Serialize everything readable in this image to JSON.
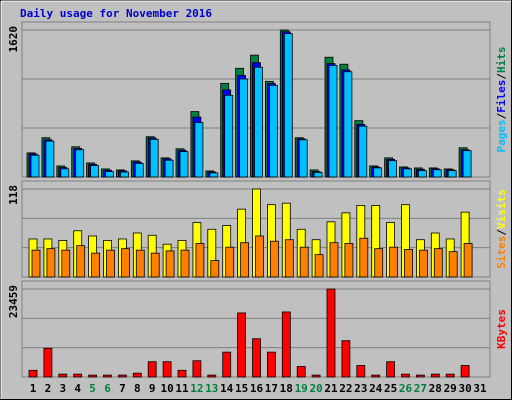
{
  "chart_data": [
    {
      "type": "bar",
      "title": "Daily usage for November 2016",
      "label_separator": "/",
      "ylim": [
        0,
        1620
      ],
      "yticks": [
        1620
      ],
      "series": [
        {
          "name": "Hits",
          "color": "#008040",
          "values": [
            266,
            433,
            122,
            333,
            155,
            89,
            78,
            178,
            444,
            211,
            311,
            721,
            67,
            1032,
            1198,
            1343,
            1054,
            1620,
            433,
            78,
            1320,
            1243,
            621,
            122,
            211,
            111,
            100,
            100,
            89,
            322,
            null
          ]
        },
        {
          "name": "Files",
          "color": "#0000FF",
          "values": [
            255,
            410,
            105,
            315,
            140,
            75,
            68,
            165,
            430,
            200,
            295,
            660,
            55,
            960,
            1120,
            1260,
            1030,
            1600,
            420,
            60,
            1250,
            1180,
            580,
            110,
            195,
            100,
            85,
            90,
            80,
            300,
            null
          ]
        },
        {
          "name": "Pages",
          "color": "#00C0FF",
          "values": [
            240,
            395,
            90,
            300,
            125,
            60,
            55,
            150,
            415,
            185,
            280,
            600,
            45,
            900,
            1080,
            1210,
            1010,
            1580,
            410,
            50,
            1230,
            1160,
            560,
            100,
            180,
            90,
            70,
            80,
            70,
            290,
            null
          ]
        }
      ]
    },
    {
      "type": "bar",
      "label_separator": "/",
      "ylim": [
        0,
        118
      ],
      "yticks": [
        118
      ],
      "series": [
        {
          "name": "Visits",
          "color": "#FFFF00",
          "values": [
            51,
            51,
            49,
            62,
            55,
            49,
            51,
            59,
            56,
            44,
            49,
            73,
            64,
            69,
            91,
            118,
            97,
            99,
            64,
            50,
            74,
            86,
            96,
            96,
            73,
            97,
            50,
            59,
            51,
            87,
            null
          ]
        },
        {
          "name": "Sites",
          "color": "#FF8000",
          "values": [
            36,
            38,
            36,
            42,
            32,
            36,
            38,
            36,
            32,
            35,
            36,
            45,
            22,
            40,
            46,
            55,
            48,
            50,
            40,
            30,
            46,
            45,
            52,
            38,
            40,
            37,
            36,
            38,
            34,
            45,
            null
          ]
        }
      ]
    },
    {
      "type": "bar",
      "ylim": [
        0,
        23459
      ],
      "yticks": [
        23459
      ],
      "categories": [
        "1",
        "2",
        "3",
        "4",
        "5",
        "6",
        "7",
        "8",
        "9",
        "10",
        "11",
        "12",
        "13",
        "14",
        "15",
        "16",
        "17",
        "18",
        "19",
        "20",
        "21",
        "22",
        "23",
        "24",
        "25",
        "26",
        "27",
        "28",
        "29",
        "30",
        "31"
      ],
      "category_colors": [
        "#000000",
        "#000000",
        "#000000",
        "#000000",
        "#008040",
        "#008040",
        "#000000",
        "#000000",
        "#000000",
        "#000000",
        "#000000",
        "#008040",
        "#008040",
        "#000000",
        "#000000",
        "#000000",
        "#000000",
        "#000000",
        "#008040",
        "#008040",
        "#000000",
        "#000000",
        "#000000",
        "#000000",
        "#000000",
        "#008040",
        "#008040",
        "#000000",
        "#000000",
        "#000000",
        "#000000"
      ],
      "series": [
        {
          "name": "KBytes",
          "color": "#FF0000",
          "values": [
            1785,
            7650,
            765,
            765,
            510,
            510,
            510,
            1020,
            4080,
            4080,
            1785,
            4335,
            510,
            6630,
            17085,
            10200,
            6630,
            17340,
            2805,
            510,
            23459,
            9690,
            3060,
            510,
            4080,
            765,
            510,
            765,
            765,
            3060,
            null
          ]
        }
      ]
    }
  ]
}
